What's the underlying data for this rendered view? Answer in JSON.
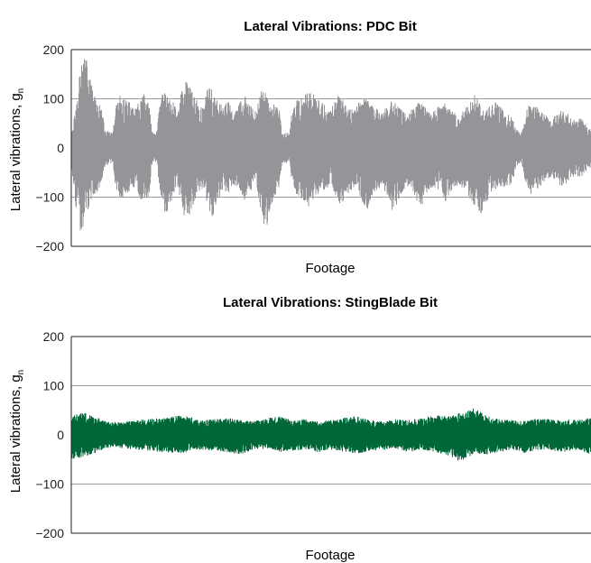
{
  "chart_data": [
    {
      "type": "line",
      "title": "Lateral Vibrations: PDC Bit",
      "xlabel": "Footage",
      "ylabel": "Lateral vibrations, g",
      "ylabel_subscript": "n",
      "ylim": [
        -200,
        200
      ],
      "yticks": [
        200,
        100,
        0,
        -100,
        -200
      ],
      "ytick_labels": [
        "200",
        "100",
        "0",
        "−100",
        "−200"
      ],
      "grid": true,
      "legend": "none",
      "series": [
        {
          "color": "#939598",
          "style": "dense-oscillation-envelope",
          "x": [
            0,
            0.5,
            1,
            1.5,
            2,
            2.5,
            3,
            3.5,
            4,
            4.5,
            5,
            5.5,
            6,
            6.5,
            7,
            7.5,
            8,
            8.5,
            9,
            9.5,
            10,
            10.5,
            11,
            11.5,
            12,
            12.5,
            13,
            13.5,
            14,
            14.5,
            15,
            15.5,
            16,
            16.5,
            17,
            17.5,
            18,
            18.5,
            19,
            19.5,
            20,
            20.5,
            21,
            21.5,
            22,
            22.5,
            23,
            23.5,
            24,
            24.5,
            25,
            25.5,
            26,
            26.5,
            27,
            27.5,
            28,
            28.5,
            29,
            29.5,
            30,
            30.5,
            31,
            31.5,
            32,
            32.5,
            33,
            33.5,
            34,
            34.5,
            35,
            35.5,
            36,
            36.5,
            37,
            37.5,
            38,
            38.5,
            39,
            39.5,
            40,
            40.5,
            41,
            41.5,
            42,
            42.5,
            43,
            43.5,
            44,
            44.5,
            45,
            45.5,
            46,
            46.5,
            47,
            47.5,
            48,
            48.5,
            49,
            49.5,
            50,
            50.5,
            51,
            51.5,
            52,
            52.5,
            53,
            53.5,
            54,
            54.5,
            55,
            55.5,
            56,
            56.5,
            57,
            57.5,
            58,
            58.5,
            59,
            59.5,
            60,
            60.5,
            61,
            61.5,
            62,
            62.5,
            63,
            63.5,
            64,
            64.5,
            65,
            65.5,
            66,
            66.5,
            67,
            67.5,
            68,
            68.5,
            69,
            69.5,
            70,
            70.5,
            71,
            71.5,
            72,
            72.5,
            73,
            73.5,
            74,
            74.5,
            75,
            75.5,
            76,
            76.5,
            77,
            77.5,
            78,
            78.5,
            79,
            79.5,
            80,
            80.5,
            81,
            81.5,
            82,
            82.5,
            83,
            83.5,
            84,
            84.5,
            85,
            85.5,
            86,
            86.5,
            87,
            87.5,
            88,
            88.5,
            89,
            89.5,
            90,
            90.5,
            91,
            91.5,
            92,
            92.5,
            93,
            93.5,
            94,
            94.5,
            95,
            95.5,
            96,
            96.5,
            97,
            97.5,
            98,
            98.5,
            99,
            99.5,
            100
          ],
          "upper": [
            40,
            60,
            100,
            150,
            175,
            185,
            180,
            160,
            120,
            105,
            95,
            90,
            70,
            38,
            35,
            32,
            30,
            85,
            100,
            110,
            105,
            100,
            95,
            90,
            85,
            80,
            95,
            105,
            110,
            100,
            90,
            35,
            30,
            35,
            90,
            110,
            115,
            105,
            100,
            95,
            85,
            80,
            110,
            125,
            135,
            140,
            130,
            115,
            100,
            90,
            85,
            80,
            115,
            125,
            120,
            110,
            100,
            95,
            90,
            85,
            100,
            90,
            80,
            75,
            80,
            100,
            95,
            105,
            90,
            85,
            80,
            75,
            100,
            120,
            125,
            110,
            100,
            95,
            90,
            85,
            80,
            35,
            30,
            32,
            30,
            80,
            90,
            100,
            95,
            105,
            115,
            110,
            120,
            110,
            105,
            100,
            95,
            90,
            85,
            80,
            75,
            95,
            105,
            110,
            100,
            95,
            90,
            85,
            80,
            75,
            90,
            95,
            100,
            105,
            100,
            95,
            90,
            85,
            80,
            75,
            80,
            85,
            90,
            95,
            95,
            90,
            85,
            80,
            75,
            70,
            75,
            80,
            85,
            90,
            95,
            90,
            85,
            80,
            75,
            75,
            80,
            85,
            90,
            95,
            90,
            85,
            80,
            75,
            70,
            60,
            70,
            80,
            85,
            90,
            100,
            110,
            105,
            95,
            90,
            85,
            80,
            85,
            90,
            95,
            90,
            85,
            80,
            75,
            70,
            65,
            60,
            40,
            35,
            30,
            45,
            80,
            90,
            95,
            90,
            85,
            80,
            75,
            70,
            65,
            60,
            60,
            65,
            70,
            75,
            80,
            75,
            70,
            65,
            60,
            55,
            60,
            60,
            55,
            50,
            45,
            40
          ],
          "lower": [
            -70,
            -90,
            -140,
            -170,
            -175,
            -160,
            -140,
            -120,
            -100,
            -95,
            -90,
            -85,
            -60,
            -38,
            -35,
            -32,
            -30,
            -80,
            -95,
            -100,
            -100,
            -95,
            -90,
            -85,
            -85,
            -80,
            -95,
            -110,
            -120,
            -115,
            -95,
            -35,
            -30,
            -35,
            -90,
            -110,
            -130,
            -135,
            -120,
            -100,
            -85,
            -80,
            -110,
            -130,
            -150,
            -145,
            -130,
            -115,
            -100,
            -90,
            -85,
            -80,
            -110,
            -135,
            -145,
            -130,
            -110,
            -100,
            -90,
            -85,
            -100,
            -95,
            -80,
            -75,
            -80,
            -95,
            -100,
            -110,
            -100,
            -90,
            -80,
            -75,
            -100,
            -130,
            -160,
            -165,
            -140,
            -120,
            -100,
            -90,
            -80,
            -35,
            -30,
            -32,
            -30,
            -80,
            -90,
            -100,
            -95,
            -110,
            -130,
            -125,
            -115,
            -105,
            -100,
            -95,
            -90,
            -85,
            -85,
            -80,
            -75,
            -95,
            -110,
            -120,
            -115,
            -105,
            -95,
            -90,
            -85,
            -80,
            -90,
            -100,
            -110,
            -120,
            -125,
            -115,
            -100,
            -90,
            -85,
            -80,
            -85,
            -95,
            -110,
            -125,
            -130,
            -120,
            -105,
            -95,
            -85,
            -80,
            -80,
            -85,
            -95,
            -110,
            -120,
            -115,
            -100,
            -90,
            -85,
            -80,
            -80,
            -85,
            -95,
            -105,
            -110,
            -100,
            -90,
            -85,
            -80,
            -75,
            -80,
            -90,
            -95,
            -100,
            -110,
            -120,
            -130,
            -140,
            -130,
            -120,
            -110,
            -100,
            -95,
            -90,
            -85,
            -80,
            -80,
            -80,
            -80,
            -75,
            -70,
            -40,
            -35,
            -30,
            -45,
            -80,
            -90,
            -95,
            -90,
            -85,
            -80,
            -75,
            -70,
            -65,
            -60,
            -60,
            -65,
            -70,
            -75,
            -80,
            -75,
            -70,
            -65,
            -60,
            -55,
            -60,
            -60,
            -55,
            -50,
            -45,
            -40
          ]
        }
      ]
    },
    {
      "type": "line",
      "title": "Lateral Vibrations: StingBlade Bit",
      "xlabel": "Footage",
      "ylabel": "Lateral vibrations, g",
      "ylabel_subscript": "n",
      "ylim": [
        -200,
        200
      ],
      "yticks": [
        200,
        100,
        0,
        -100,
        -200
      ],
      "ytick_labels": [
        "200",
        "100",
        "0",
        "−100",
        "−200"
      ],
      "grid": true,
      "legend": "none",
      "series": [
        {
          "color": "#006838",
          "style": "dense-oscillation-envelope",
          "x": [
            0,
            2.5,
            5,
            7.5,
            10,
            12.5,
            15,
            17.5,
            20,
            22.5,
            25,
            27.5,
            30,
            32.5,
            35,
            37.5,
            40,
            42.5,
            45,
            47.5,
            50,
            52.5,
            55,
            57.5,
            60,
            62.5,
            65,
            67.5,
            70,
            72.5,
            75,
            77.5,
            80,
            82.5,
            85,
            87.5,
            90,
            92.5,
            95,
            97.5,
            100
          ],
          "upper": [
            40,
            45,
            35,
            25,
            28,
            30,
            32,
            35,
            40,
            38,
            30,
            32,
            35,
            30,
            28,
            35,
            38,
            30,
            32,
            28,
            30,
            35,
            38,
            30,
            28,
            32,
            30,
            35,
            40,
            38,
            45,
            55,
            38,
            32,
            30,
            28,
            35,
            32,
            30,
            32,
            35
          ],
          "lower": [
            -50,
            -45,
            -35,
            -25,
            -28,
            -30,
            -32,
            -35,
            -38,
            -35,
            -30,
            -32,
            -35,
            -40,
            -30,
            -28,
            -35,
            -32,
            -30,
            -35,
            -30,
            -35,
            -40,
            -32,
            -30,
            -28,
            -35,
            -30,
            -35,
            -42,
            -55,
            -38,
            -40,
            -35,
            -30,
            -38,
            -30,
            -32,
            -35,
            -30,
            -40
          ]
        }
      ]
    }
  ]
}
